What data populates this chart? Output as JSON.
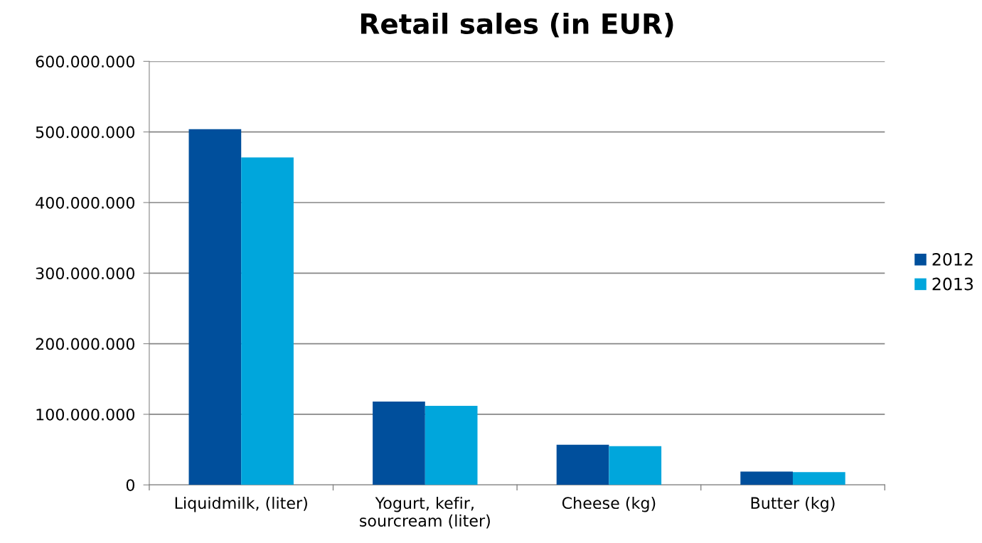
{
  "chart_data": {
    "type": "bar",
    "title": "Retail sales (in EUR)",
    "categories": [
      "Liquidmilk, (liter)",
      "Yogurt, kefir,\nsourcream (liter)",
      "Cheese (kg)",
      "Butter (kg)"
    ],
    "series": [
      {
        "name": "2012",
        "color": "#004f9c",
        "values": [
          504000000,
          118000000,
          57000000,
          19000000
        ]
      },
      {
        "name": "2013",
        "color": "#00a6dc",
        "values": [
          464000000,
          112000000,
          55000000,
          18000000
        ]
      }
    ],
    "ylim": [
      0,
      600000000
    ],
    "yticks": [
      0,
      {
        "value": 100000000,
        "label": "100.000.000"
      },
      {
        "value": 200000000,
        "label": "200.000.000"
      },
      {
        "value": 300000000,
        "label": "300.000.000"
      },
      {
        "value": 400000000,
        "label": "400.000.000"
      },
      {
        "value": 500000000,
        "label": "500.000.000"
      },
      {
        "value": 600000000,
        "label": "600.000.000"
      }
    ],
    "grid": "y",
    "legend": "right"
  }
}
